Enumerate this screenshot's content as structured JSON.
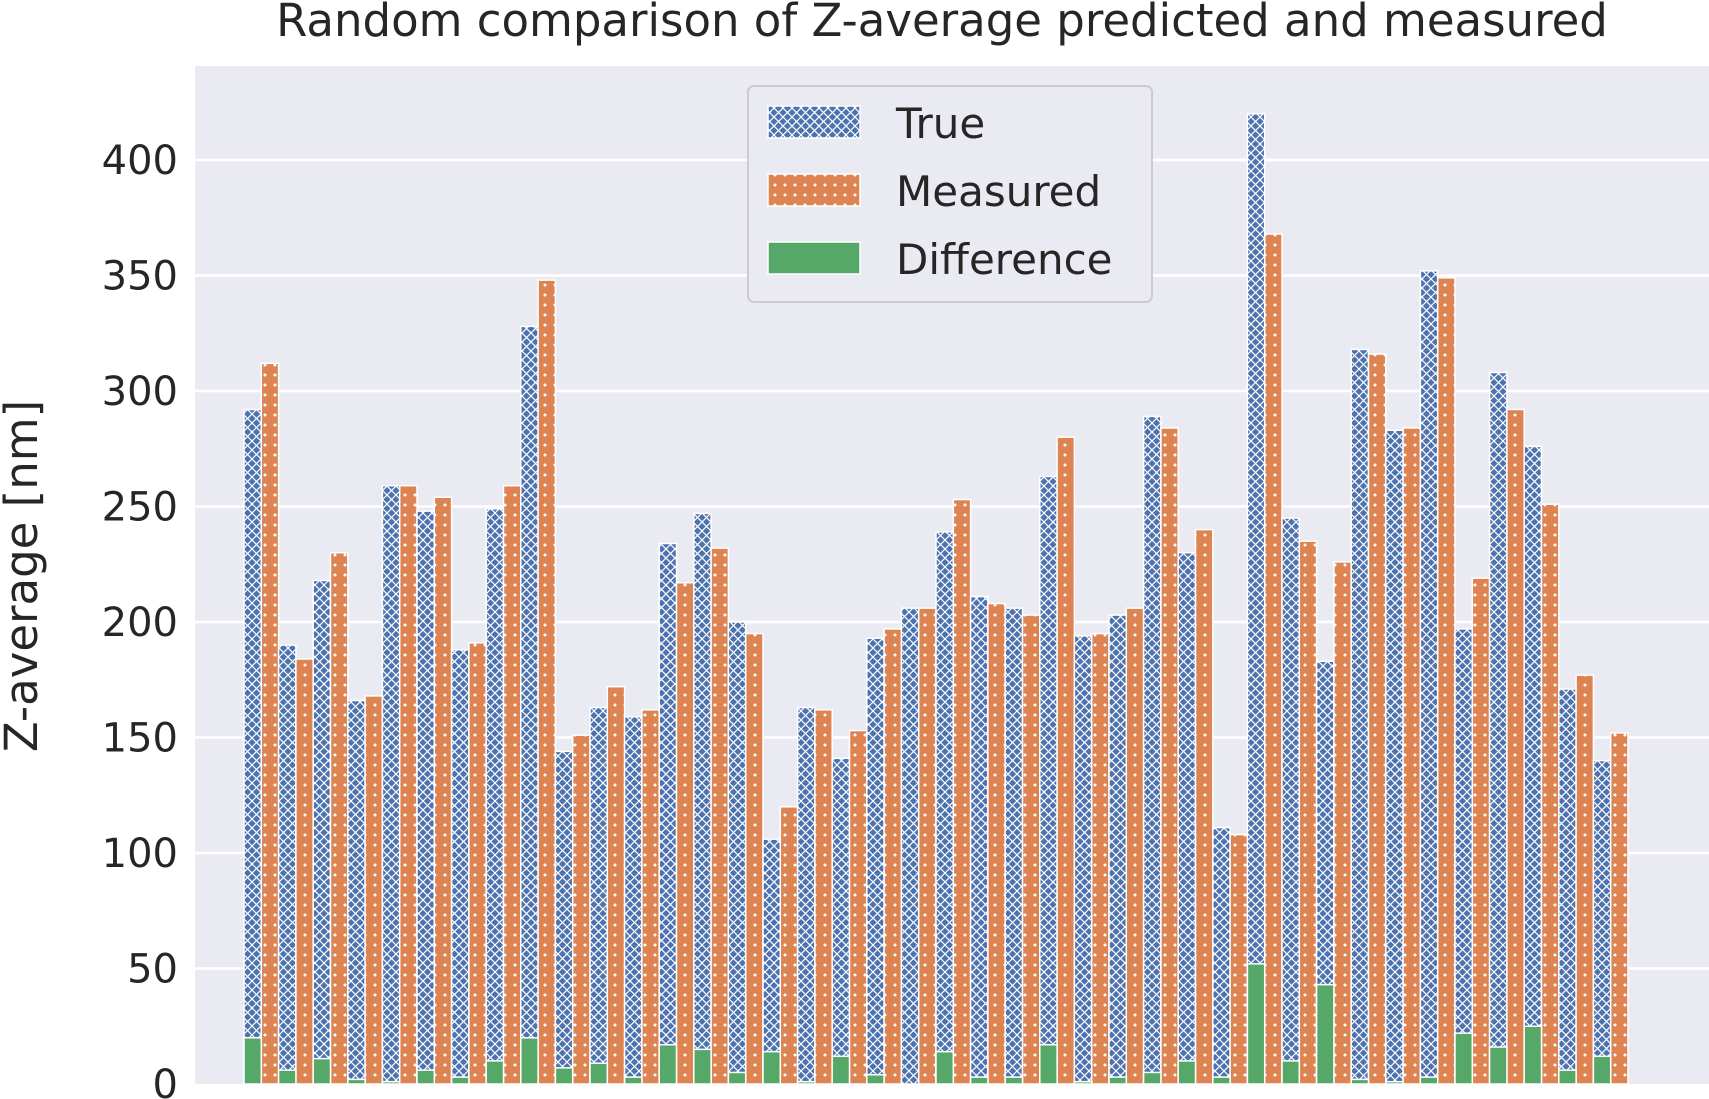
{
  "chart_data": {
    "type": "bar",
    "title": "Random comparison of Z-average predicted and measured",
    "xlabel": "",
    "ylabel": "Z-average [nm]",
    "ylim": [
      0,
      432
    ],
    "yticks": [
      0,
      50,
      100,
      150,
      200,
      250,
      300,
      350,
      400
    ],
    "grid": true,
    "legend_position": "top-center",
    "series": [
      {
        "name": "True",
        "color": "#4c72b0",
        "pattern": "crosshatch",
        "values": [
          292,
          190,
          218,
          166,
          259,
          248,
          188,
          249,
          328,
          144,
          163,
          159,
          234,
          247,
          200,
          106,
          163,
          141,
          193,
          206,
          239,
          211,
          206,
          263,
          194,
          203,
          289,
          230,
          111,
          420,
          245,
          183,
          318,
          283,
          352,
          197,
          308,
          276,
          171,
          140
        ]
      },
      {
        "name": "Measured",
        "color": "#dd8452",
        "pattern": "dots",
        "values": [
          312,
          184,
          230,
          168,
          259,
          254,
          191,
          259,
          348,
          151,
          172,
          162,
          217,
          232,
          195,
          120,
          162,
          153,
          197,
          206,
          253,
          208,
          203,
          280,
          195,
          206,
          284,
          240,
          108,
          368,
          235,
          226,
          316,
          284,
          349,
          219,
          292,
          251,
          177,
          152
        ]
      },
      {
        "name": "Difference",
        "color": "#55a868",
        "pattern": "solid",
        "values": [
          20,
          6,
          11,
          2,
          1,
          6,
          3,
          10,
          20,
          7,
          9,
          3,
          17,
          15,
          5,
          14,
          1,
          12,
          4,
          0,
          14,
          3,
          3,
          17,
          1,
          3,
          5,
          10,
          3,
          52,
          10,
          43,
          2,
          1,
          3,
          22,
          16,
          25,
          6,
          12
        ]
      }
    ]
  }
}
